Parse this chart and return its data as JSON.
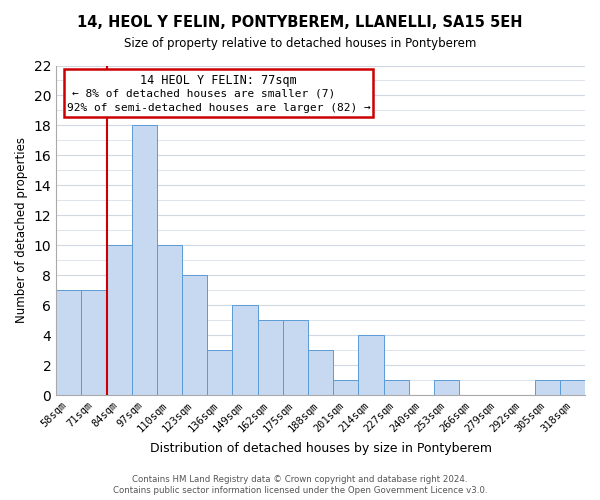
{
  "title": "14, HEOL Y FELIN, PONTYBEREM, LLANELLI, SA15 5EH",
  "subtitle": "Size of property relative to detached houses in Pontyberem",
  "xlabel": "Distribution of detached houses by size in Pontyberem",
  "ylabel": "Number of detached properties",
  "bar_labels": [
    "58sqm",
    "71sqm",
    "84sqm",
    "97sqm",
    "110sqm",
    "123sqm",
    "136sqm",
    "149sqm",
    "162sqm",
    "175sqm",
    "188sqm",
    "201sqm",
    "214sqm",
    "227sqm",
    "240sqm",
    "253sqm",
    "266sqm",
    "279sqm",
    "292sqm",
    "305sqm",
    "318sqm"
  ],
  "bar_values": [
    7,
    7,
    10,
    18,
    10,
    8,
    3,
    6,
    5,
    5,
    3,
    1,
    4,
    1,
    0,
    1,
    0,
    0,
    0,
    1,
    1
  ],
  "bar_color": "#c6d9f1",
  "bar_edge_color": "#5b9bd5",
  "ylim": [
    0,
    22
  ],
  "yticks": [
    0,
    2,
    4,
    6,
    8,
    10,
    12,
    14,
    16,
    18,
    20,
    22
  ],
  "annotation_title": "14 HEOL Y FELIN: 77sqm",
  "annotation_line1": "← 8% of detached houses are smaller (7)",
  "annotation_line2": "92% of semi-detached houses are larger (82) →",
  "footer_line1": "Contains HM Land Registry data © Crown copyright and database right 2024.",
  "footer_line2": "Contains public sector information licensed under the Open Government Licence v3.0.",
  "background_color": "#ffffff",
  "grid_color": "#d0d8e4"
}
